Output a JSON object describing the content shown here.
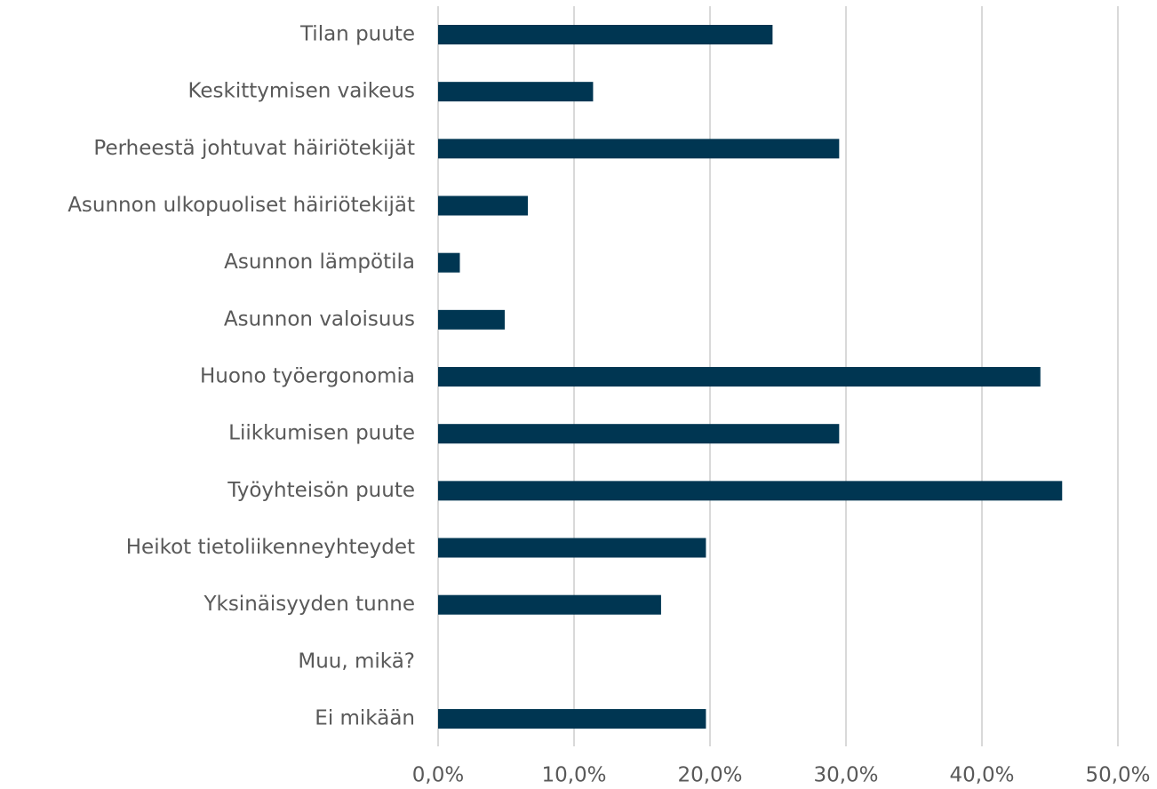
{
  "chart_data": {
    "type": "bar",
    "orientation": "horizontal",
    "categories": [
      "Tilan puute",
      "Keskittymisen vaikeus",
      "Perheestä johtuvat häiriötekijät",
      "Asunnon ulkopuoliset häiriötekijät",
      "Asunnon lämpötila",
      "Asunnon valoisuus",
      "Huono työergonomia",
      "Liikkumisen puute",
      "Työyhteisön puute",
      "Heikot tietoliikenneyhteydet",
      "Yksinäisyyden tunne",
      "Muu, mikä?",
      "Ei mikään"
    ],
    "values": [
      24.6,
      11.4,
      29.5,
      6.6,
      1.6,
      4.9,
      44.3,
      29.5,
      45.9,
      19.7,
      16.4,
      0,
      19.7
    ],
    "color": "#003652",
    "xlim": [
      0,
      50
    ],
    "xticks": [
      {
        "value": 0,
        "label": "0,0%"
      },
      {
        "value": 10,
        "label": "10,0%"
      },
      {
        "value": 20,
        "label": "20,0%"
      },
      {
        "value": 30,
        "label": "30,0%"
      },
      {
        "value": 40,
        "label": "40,0%"
      },
      {
        "value": 50,
        "label": "50,0%"
      }
    ],
    "grid": true
  }
}
